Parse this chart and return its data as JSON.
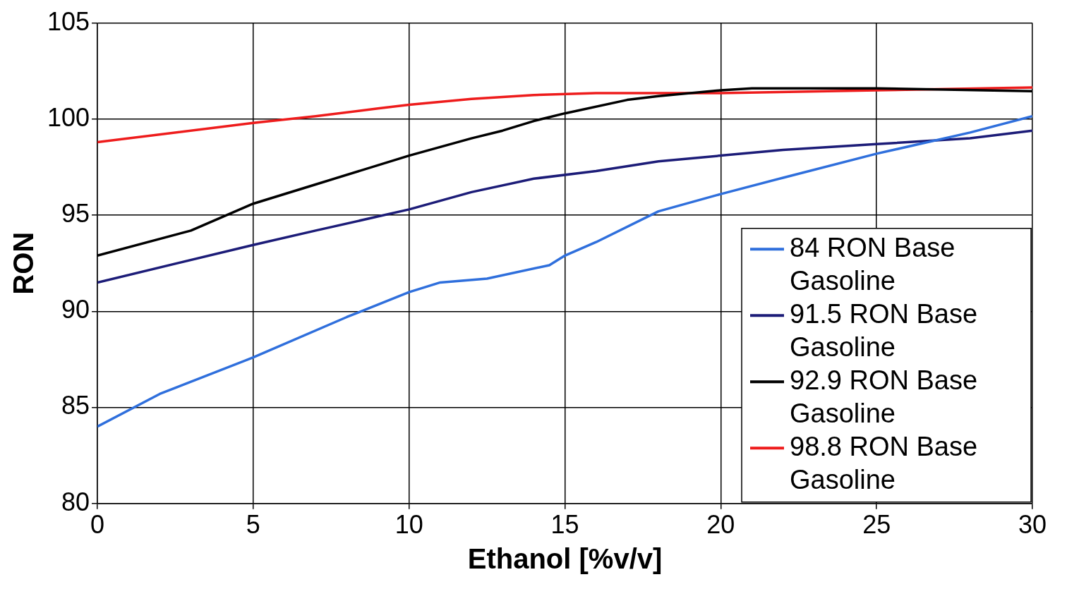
{
  "chart_data": {
    "type": "line",
    "xlabel": "Ethanol [%v/v]",
    "ylabel": "RON",
    "xlim": [
      0,
      30
    ],
    "xticks": [
      0,
      5,
      10,
      15,
      20,
      25,
      30
    ],
    "ylim": [
      80,
      105
    ],
    "yticks": [
      80,
      85,
      90,
      95,
      100,
      105
    ],
    "grid": true,
    "legend": "bottom right",
    "marker": "none",
    "line_style": "solid",
    "series": [
      {
        "name": "84 RON Base Gasoline",
        "color": "#2f6fdc",
        "x": [
          0,
          2,
          5,
          8,
          10,
          11,
          12.5,
          14.5,
          15,
          16,
          18,
          20,
          22,
          25,
          28,
          30
        ],
        "values": [
          84.0,
          85.7,
          87.6,
          89.7,
          91.0,
          91.5,
          91.7,
          92.4,
          92.9,
          93.6,
          95.2,
          96.1,
          96.95,
          98.2,
          99.3,
          100.15
        ]
      },
      {
        "name": "91.5 RON Base Gasoline",
        "color": "#1c1c78",
        "x": [
          0,
          5,
          7,
          10,
          12,
          14,
          16,
          18,
          20,
          22,
          25,
          28,
          30
        ],
        "values": [
          91.5,
          93.45,
          94.2,
          95.3,
          96.2,
          96.9,
          97.3,
          97.8,
          98.1,
          98.4,
          98.7,
          99.0,
          99.4
        ]
      },
      {
        "name": "92.9 RON Base Gasoline",
        "color": "#000000",
        "x": [
          0,
          3,
          5,
          7,
          10,
          12,
          13,
          14,
          15,
          17,
          18,
          20,
          21,
          25,
          30
        ],
        "values": [
          92.9,
          94.2,
          95.6,
          96.6,
          98.1,
          99.0,
          99.4,
          99.9,
          100.3,
          101.0,
          101.2,
          101.5,
          101.6,
          101.6,
          101.45
        ]
      },
      {
        "name": "98.8 RON Base Gasoline",
        "color": "#ee1c1c",
        "x": [
          0,
          5,
          7,
          9,
          10,
          12,
          14,
          16,
          20,
          25,
          30
        ],
        "values": [
          98.8,
          99.8,
          100.15,
          100.55,
          100.75,
          101.05,
          101.25,
          101.35,
          101.35,
          101.5,
          101.65
        ]
      }
    ]
  }
}
